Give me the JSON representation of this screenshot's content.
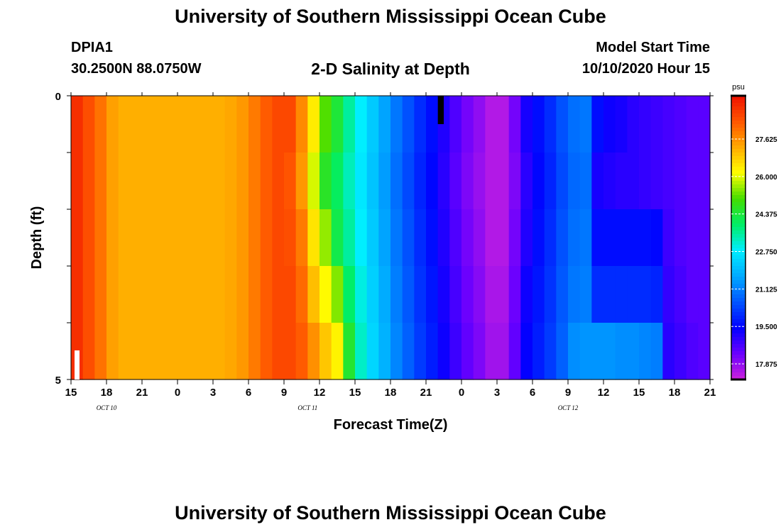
{
  "header": {
    "title": "University of Southern Mississippi Ocean Cube",
    "station_id": "DPIA1",
    "coords": "30.2500N 88.0750W",
    "subtitle": "2-D Salinity at Depth",
    "model_start_label": "Model Start Time",
    "model_start_value": "10/10/2020 Hour 15"
  },
  "footer": {
    "title": "University of Southern Mississippi Ocean Cube"
  },
  "chart_data": {
    "type": "heatmap",
    "xlabel": "Forecast Time(Z)",
    "ylabel": "Depth (ft)",
    "ylim": [
      0,
      5
    ],
    "y_ticks": [
      "0",
      "5"
    ],
    "x_ticks": [
      "15",
      "18",
      "21",
      "0",
      "3",
      "6",
      "9",
      "12",
      "15",
      "18",
      "21",
      "0",
      "3",
      "6",
      "9",
      "12",
      "15",
      "18",
      "21"
    ],
    "date_labels": [
      {
        "hour_index": 3,
        "label": "OCT 10"
      },
      {
        "hour_index": 20,
        "label": "OCT 11"
      },
      {
        "hour_index": 42,
        "label": "OCT 12"
      }
    ],
    "start_hour": 15,
    "forecast_hours": 54,
    "depth_layers": 5,
    "colorbar": {
      "unit": "psu",
      "min": 17.2,
      "max": 29.5,
      "ticks": [
        "27.625",
        "26.000",
        "24.375",
        "22.750",
        "21.125",
        "19.500",
        "17.875"
      ],
      "colors": [
        "#cc22dd",
        "#6a00ff",
        "#0000ff",
        "#0055ff",
        "#00aaff",
        "#00eeff",
        "#00ee66",
        "#44dd00",
        "#ffff00",
        "#ffaa00",
        "#ff5500",
        "#ee1100"
      ]
    },
    "salinity": [
      [
        29.0,
        28.5,
        28.0,
        27.4,
        27.2,
        27.2,
        27.2,
        27.2,
        27.2,
        27.2,
        27.2,
        27.2,
        27.2,
        27.3,
        27.5,
        27.9,
        28.3,
        28.6,
        28.6,
        27.7,
        26.4,
        25.1,
        24.4,
        23.5,
        22.8,
        22.2,
        21.6,
        21.0,
        20.5,
        20.0,
        19.6,
        19.1,
        18.6,
        18.2,
        17.9,
        17.5,
        17.5,
        18.2,
        19.2,
        19.6,
        20.0,
        20.5,
        20.9,
        21.0,
        19.6,
        19.3,
        19.2,
        19.0,
        18.9,
        18.8,
        18.7,
        18.6,
        18.5,
        18.5
      ],
      [
        29.0,
        28.5,
        28.0,
        27.4,
        27.2,
        27.2,
        27.2,
        27.2,
        27.2,
        27.2,
        27.2,
        27.2,
        27.2,
        27.3,
        27.5,
        27.9,
        28.3,
        28.6,
        28.4,
        27.5,
        25.9,
        24.6,
        24.0,
        23.3,
        22.7,
        22.1,
        21.5,
        20.9,
        20.4,
        19.9,
        19.5,
        19.0,
        18.5,
        18.1,
        17.8,
        17.5,
        17.5,
        18.1,
        19.0,
        19.5,
        19.9,
        20.4,
        20.8,
        20.9,
        19.2,
        19.1,
        19.0,
        19.0,
        18.9,
        18.8,
        18.7,
        18.6,
        18.5,
        18.5
      ],
      [
        29.0,
        28.5,
        28.0,
        27.4,
        27.2,
        27.2,
        27.2,
        27.2,
        27.2,
        27.2,
        27.2,
        27.2,
        27.2,
        27.3,
        27.5,
        27.9,
        28.3,
        28.6,
        28.5,
        27.9,
        26.5,
        25.5,
        24.2,
        23.5,
        22.8,
        22.2,
        21.6,
        21.0,
        20.5,
        20.0,
        19.6,
        19.1,
        18.6,
        18.2,
        17.9,
        17.5,
        17.5,
        18.2,
        19.1,
        19.6,
        20.0,
        20.5,
        20.9,
        21.0,
        19.6,
        19.6,
        19.6,
        19.6,
        19.6,
        19.5,
        18.8,
        18.6,
        18.5,
        18.5
      ],
      [
        29.0,
        28.5,
        28.0,
        27.4,
        27.2,
        27.2,
        27.2,
        27.2,
        27.2,
        27.2,
        27.2,
        27.2,
        27.2,
        27.3,
        27.5,
        27.9,
        28.3,
        28.6,
        28.6,
        28.1,
        27.0,
        26.2,
        25.4,
        23.9,
        23.0,
        22.3,
        21.7,
        21.1,
        20.6,
        20.1,
        19.7,
        19.2,
        18.7,
        18.3,
        18.0,
        17.6,
        17.6,
        18.3,
        19.3,
        19.7,
        20.1,
        20.6,
        21.0,
        21.1,
        20.0,
        20.0,
        20.0,
        20.0,
        20.0,
        19.9,
        18.9,
        18.7,
        18.5,
        18.5
      ],
      [
        29.0,
        28.5,
        28.0,
        27.4,
        27.2,
        27.2,
        27.2,
        27.2,
        27.2,
        27.2,
        27.2,
        27.2,
        27.2,
        27.3,
        27.5,
        27.9,
        28.3,
        28.6,
        28.6,
        28.3,
        27.6,
        26.9,
        26.3,
        24.5,
        23.2,
        22.4,
        21.8,
        21.2,
        20.7,
        20.2,
        19.8,
        19.3,
        18.8,
        18.4,
        18.1,
        17.7,
        17.7,
        18.4,
        19.4,
        19.8,
        20.2,
        20.7,
        21.3,
        21.4,
        21.4,
        21.4,
        21.3,
        21.3,
        21.2,
        21.1,
        19.0,
        18.8,
        18.6,
        18.5
      ]
    ]
  }
}
